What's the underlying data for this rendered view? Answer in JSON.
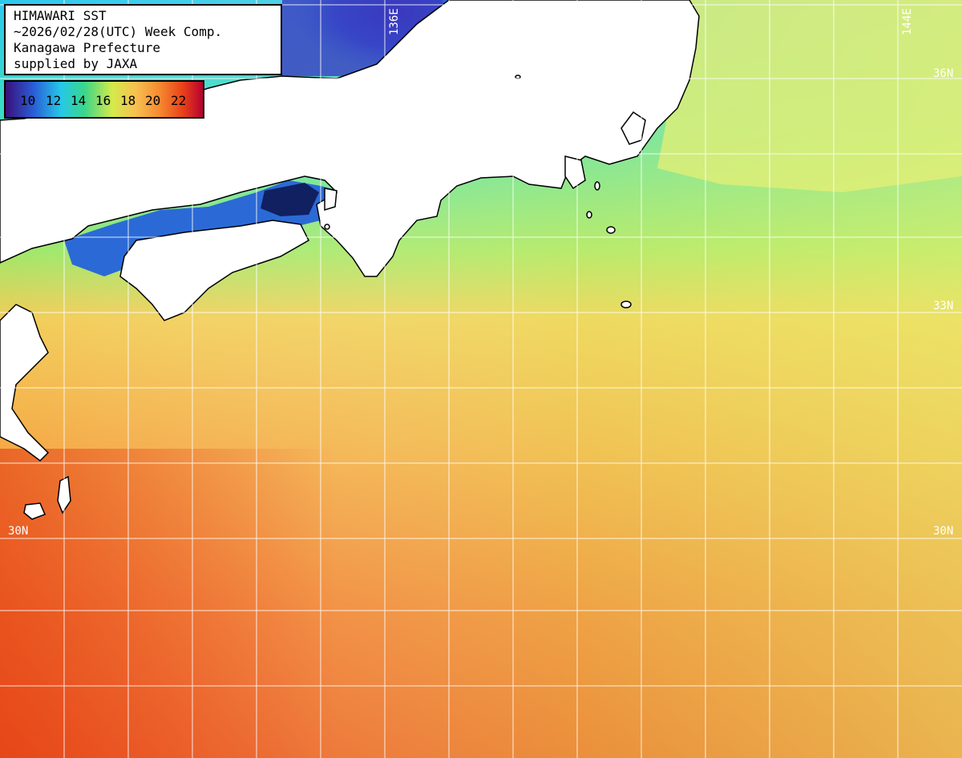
{
  "title": {
    "line1": "HIMAWARI SST",
    "line2": "~2026/02/28(UTC) Week Comp.",
    "line3": "Kanagawa Prefecture",
    "line4": "supplied by JAXA"
  },
  "legend": {
    "labels": [
      "10",
      "12",
      "14",
      "16",
      "18",
      "20",
      "22"
    ],
    "colors": {
      "10": "#4a1a8a",
      "12": "#2a6ad8",
      "14": "#2ad0e6",
      "16": "#46d87c",
      "18": "#e2ee4e",
      "20": "#f7a844",
      "22": "#e23a1a"
    }
  },
  "grid_labels": {
    "lon_136": "136E",
    "lon_144": "144E",
    "lat_36": "36N",
    "lat_33": "33N",
    "lat_30_left": "30N",
    "lat_30_right": "30N"
  },
  "colors": {
    "land": "#ffffff",
    "coast": "#000000",
    "grid": "#ffffff"
  }
}
